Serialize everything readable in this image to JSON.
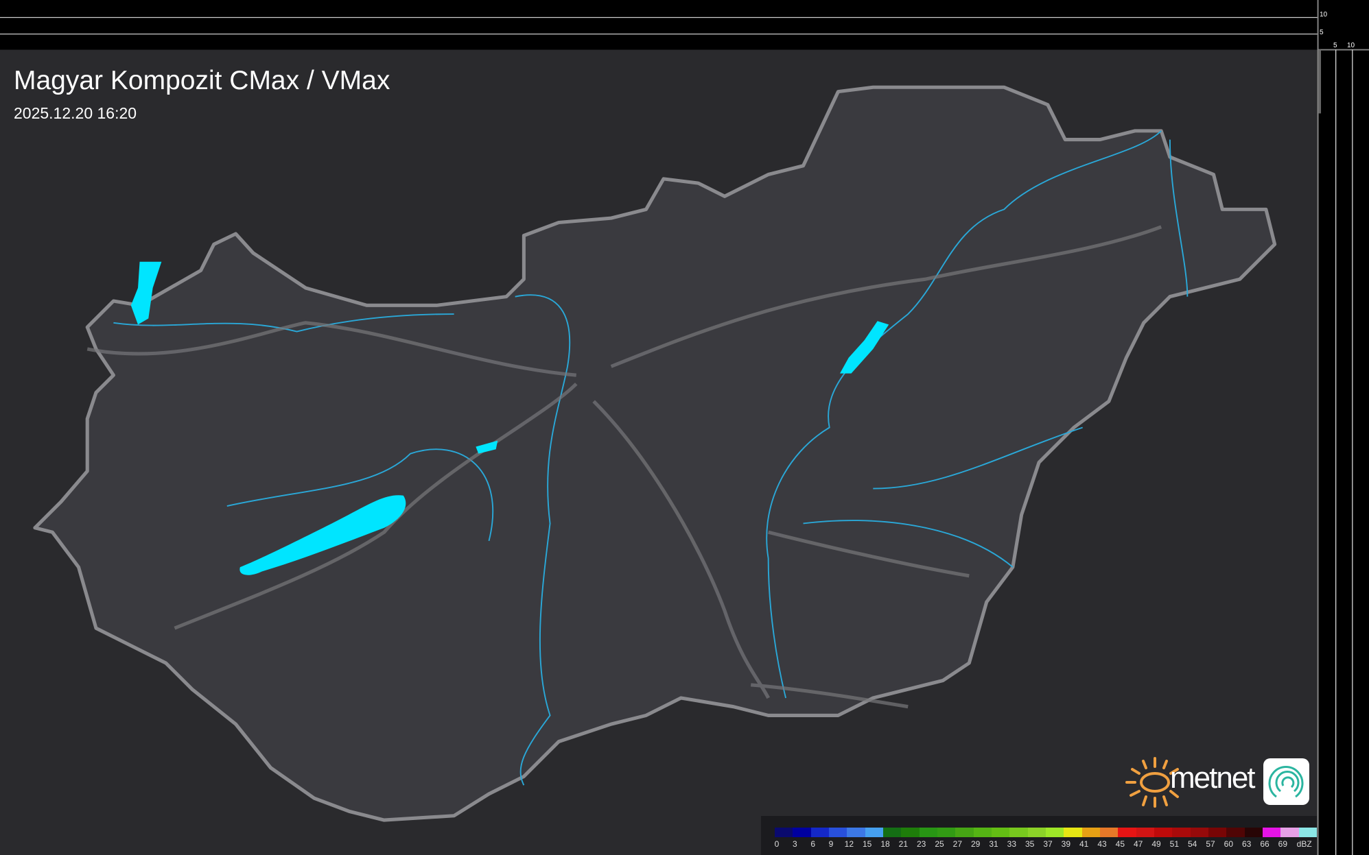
{
  "header": {
    "title": "Magyar Kompozit CMax / VMax",
    "datetime": "2025.12.20 16:20"
  },
  "scale": {
    "vertical_labels": [
      "10",
      "5"
    ],
    "horizontal_labels": [
      "5",
      "10"
    ]
  },
  "legend": {
    "unit": "dBZ",
    "labels": [
      "0",
      "3",
      "6",
      "9",
      "12",
      "15",
      "18",
      "21",
      "23",
      "25",
      "27",
      "29",
      "31",
      "33",
      "35",
      "37",
      "39",
      "41",
      "43",
      "45",
      "47",
      "49",
      "51",
      "54",
      "57",
      "60",
      "63",
      "66",
      "69"
    ],
    "colors": [
      "#0a0a6e",
      "#0000a0",
      "#1428c8",
      "#2850dc",
      "#3c78e6",
      "#46a0f0",
      "#146e14",
      "#1e7d0a",
      "#289614",
      "#329b14",
      "#46a514",
      "#55b414",
      "#64be14",
      "#78c81e",
      "#8cd228",
      "#9ee628",
      "#e6e614",
      "#e6a014",
      "#e67828",
      "#e61414",
      "#d21414",
      "#be0a0a",
      "#aa0a0a",
      "#960a0a",
      "#780505",
      "#500505",
      "#280505",
      "#e614e6",
      "#e6a0e6",
      "#8ce6e6"
    ]
  },
  "brand": {
    "name": "metnet",
    "sun_color": "#f0a040",
    "water_color": "#00e5ff",
    "border_color": "#8a8a8e",
    "river_color": "#2aa8d8"
  }
}
